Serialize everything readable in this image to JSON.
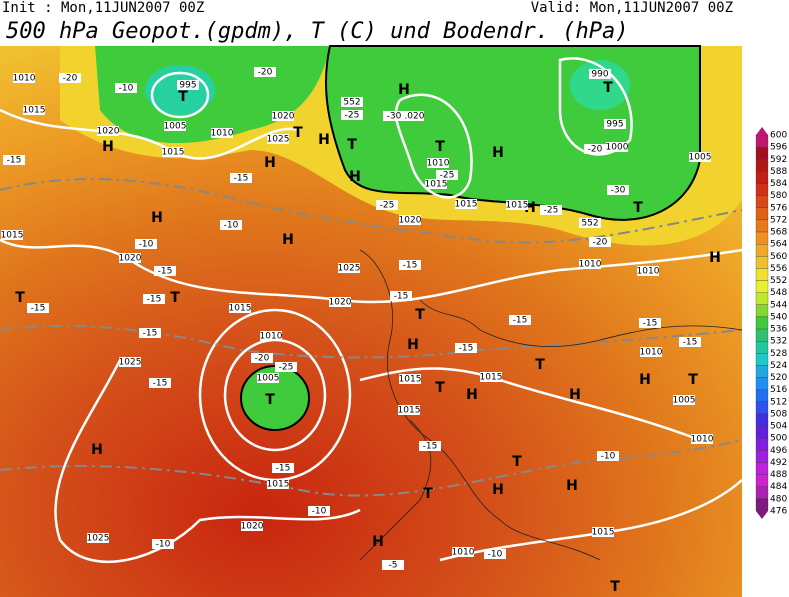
{
  "header": {
    "init": "Init : Mon,11JUN2007 00Z",
    "valid": "Valid: Mon,11JUN2007 00Z",
    "title": "500 hPa Geopot.(gpdm), T (C) und Bodendr. (hPa)"
  },
  "colorbar": {
    "levels": [
      600,
      596,
      592,
      588,
      584,
      580,
      576,
      572,
      568,
      564,
      560,
      556,
      552,
      548,
      544,
      540,
      536,
      532,
      528,
      524,
      520,
      516,
      512,
      508,
      504,
      500,
      496,
      492,
      488,
      484,
      480,
      476
    ]
  },
  "map": {
    "pressure_centers": [
      "H",
      "H",
      "H",
      "H",
      "H",
      "H",
      "H",
      "H",
      "H",
      "H",
      "H",
      "H",
      "H",
      "H",
      "H",
      "H",
      "H",
      "H",
      "T",
      "T",
      "T",
      "T",
      "T",
      "T",
      "T",
      "T",
      "T",
      "T",
      "T",
      "T",
      "T",
      "T",
      "T",
      "T"
    ],
    "isobar_labels": [
      "995",
      "990",
      "995",
      "1000",
      "1005",
      "1010",
      "1015",
      "1020",
      "1010",
      "1015",
      "1025",
      "1020",
      "1020",
      "1010",
      "1015",
      "1015",
      "1020",
      "1025",
      "1020",
      "1015",
      "1010",
      "1005",
      "1015",
      "1015",
      "1015",
      "1015",
      "1020",
      "1025",
      "1025",
      "1020",
      "1015",
      "1010",
      "1010",
      "1005",
      "1005",
      "1010",
      "1010",
      "1015",
      "1010",
      "1015"
    ],
    "temperature_labels": [
      "-20",
      "-10",
      "-20",
      "-25",
      "-30",
      "-25",
      "-25",
      "-25",
      "-30",
      "-20",
      "-20",
      "-15",
      "-15",
      "-10",
      "-10",
      "-15",
      "-15",
      "-15",
      "-15",
      "-15",
      "-20",
      "-25",
      "-15",
      "-15",
      "-15",
      "-15",
      "-15",
      "-15",
      "-15",
      "-10",
      "-15",
      "-10",
      "-10",
      "-10",
      "-5"
    ],
    "geopotential_labels": [
      "552",
      "552"
    ]
  }
}
